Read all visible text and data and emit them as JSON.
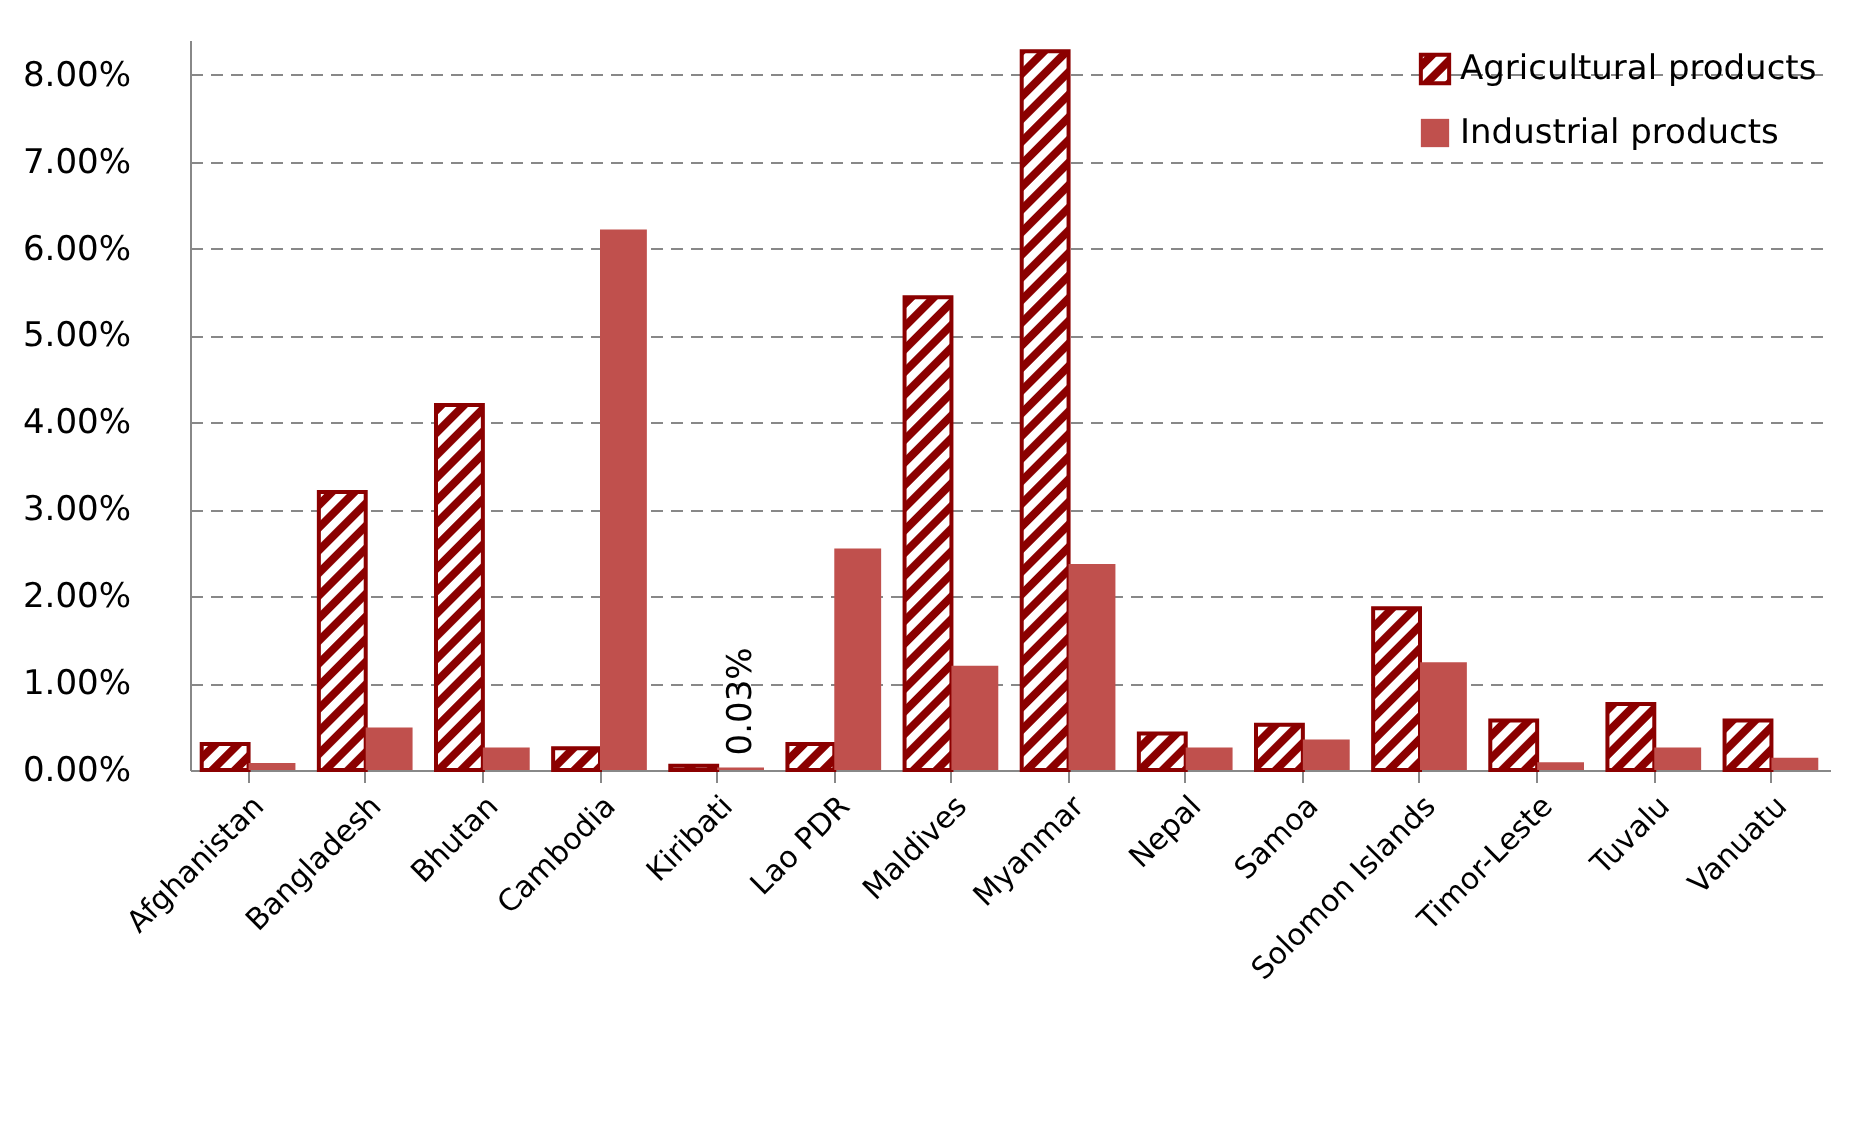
{
  "chart_data": {
    "type": "bar",
    "categories": [
      "Afghanistan",
      "Bangladesh",
      "Bhutan",
      "Cambodia",
      "Kiribati",
      "Lao PDR",
      "Maldives",
      "Myanmar",
      "Nepal",
      "Samoa",
      "Solomon Islands",
      "Timor-Leste",
      "Tuvalu",
      "Vanuatu"
    ],
    "series": [
      {
        "name": "Agricultural products",
        "color": "#8b0000",
        "values": [
          0.3,
          3.2,
          4.2,
          0.25,
          0.05,
          0.3,
          5.44,
          8.27,
          0.42,
          0.52,
          1.86,
          0.57,
          0.76,
          0.57
        ]
      },
      {
        "name": "Industrial products",
        "color": "#c0504d",
        "values": [
          0.08,
          0.49,
          0.26,
          6.22,
          0.03,
          2.55,
          1.2,
          2.37,
          0.26,
          0.35,
          1.24,
          0.09,
          0.26,
          0.14
        ],
        "value_labels": [
          null,
          null,
          null,
          null,
          "0.03%",
          null,
          null,
          null,
          null,
          null,
          null,
          null,
          null,
          null
        ]
      }
    ],
    "ylim": [
      0,
      8.4
    ],
    "yticks": [
      {
        "value": 0,
        "label": "0.00%"
      },
      {
        "value": 1,
        "label": "1.00%"
      },
      {
        "value": 2,
        "label": "2.00%"
      },
      {
        "value": 3,
        "label": "3.00%"
      },
      {
        "value": 4,
        "label": "4.00%"
      },
      {
        "value": 5,
        "label": "5.00%"
      },
      {
        "value": 6,
        "label": "6.00%"
      },
      {
        "value": 7,
        "label": "7.00%"
      },
      {
        "value": 8,
        "label": "8.00%"
      }
    ],
    "grid": "y",
    "legend": "top right"
  }
}
